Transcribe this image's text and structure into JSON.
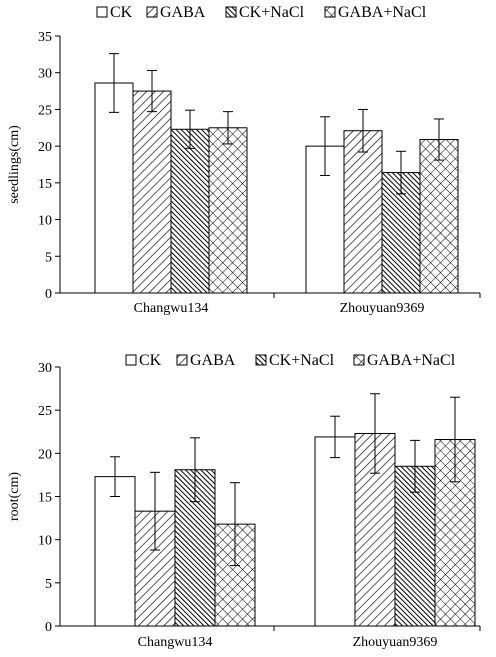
{
  "chart_data": [
    {
      "type": "bar",
      "ylabel": "seedlings(cm)",
      "ylim": [
        0,
        35
      ],
      "ytick_step": 5,
      "yticks": [
        "0",
        "5",
        "10",
        "15",
        "20",
        "25",
        "30",
        "35"
      ],
      "categories": [
        "Changwu134",
        "Zhouyuan9369"
      ],
      "legend_position": "top",
      "series": [
        {
          "name": "CK",
          "pattern": "plain",
          "values": [
            28.6,
            20.0
          ],
          "errors": [
            4.0,
            4.0
          ]
        },
        {
          "name": "GABA",
          "pattern": "diagonal",
          "values": [
            27.5,
            22.1
          ],
          "errors": [
            2.8,
            2.9
          ]
        },
        {
          "name": "CK+NaCl",
          "pattern": "dense-diagonal",
          "values": [
            22.3,
            16.4
          ],
          "errors": [
            2.6,
            2.9
          ]
        },
        {
          "name": "GABA+NaCl",
          "pattern": "checker",
          "values": [
            22.5,
            20.9
          ],
          "errors": [
            2.2,
            2.8
          ]
        }
      ]
    },
    {
      "type": "bar",
      "ylabel": "root(cm)",
      "ylim": [
        0,
        30
      ],
      "ytick_step": 5,
      "yticks": [
        "0",
        "5",
        "10",
        "15",
        "20",
        "25",
        "30"
      ],
      "categories": [
        "Changwu134",
        "Zhouyuan9369"
      ],
      "legend_position": "top",
      "series": [
        {
          "name": "CK",
          "pattern": "plain",
          "values": [
            17.3,
            21.9
          ],
          "errors": [
            2.3,
            2.4
          ]
        },
        {
          "name": "GABA",
          "pattern": "diagonal",
          "values": [
            13.3,
            22.3
          ],
          "errors": [
            4.5,
            4.6
          ]
        },
        {
          "name": "CK+NaCl",
          "pattern": "dense-diagonal",
          "values": [
            18.1,
            18.5
          ],
          "errors": [
            3.7,
            3.0
          ]
        },
        {
          "name": "GABA+NaCl",
          "pattern": "checker",
          "values": [
            11.8,
            21.6
          ],
          "errors": [
            4.8,
            4.9
          ]
        }
      ]
    }
  ]
}
